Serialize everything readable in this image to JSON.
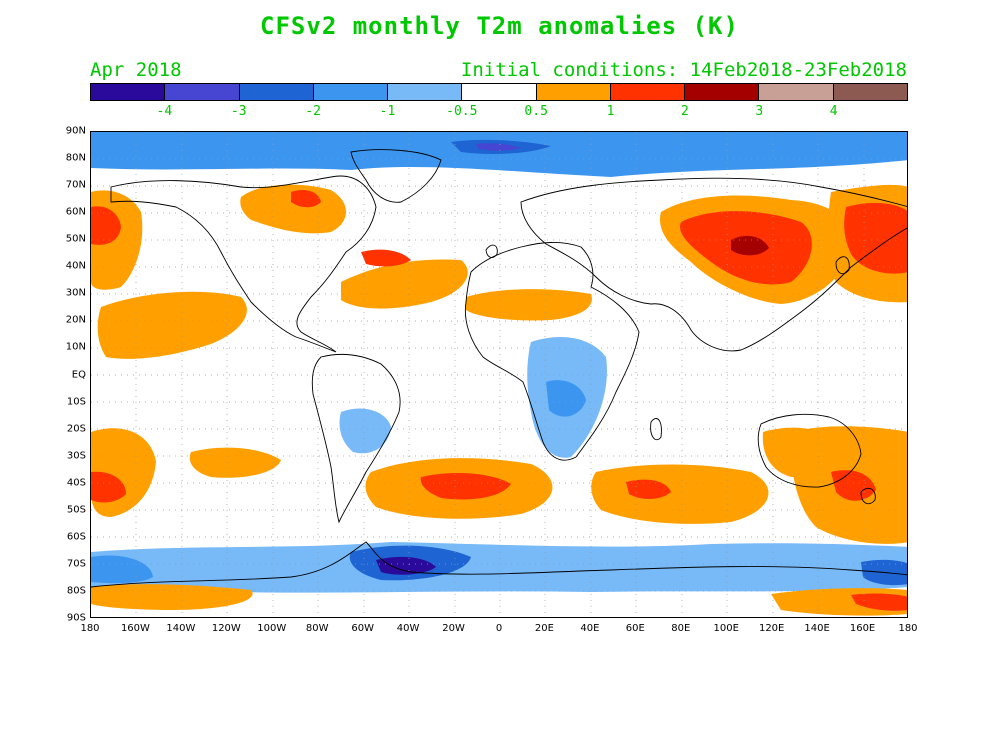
{
  "title": "CFSv2 monthly T2m anomalies (K)",
  "valid_month": "Apr 2018",
  "initial_conditions": "Initial conditions: 14Feb2018-23Feb2018",
  "legend": {
    "colors": [
      "#2a0a9a",
      "#4646d2",
      "#1e64d2",
      "#3c96f0",
      "#78b9f8",
      "#ffffff",
      "#ffa000",
      "#ff3200",
      "#a50000",
      "#c8a096",
      "#8c5a50"
    ],
    "tick_labels": [
      "-4",
      "-3",
      "-2",
      "-1",
      "-0.5",
      "0.5",
      "1",
      "2",
      "3",
      "4"
    ]
  },
  "lat_labels": [
    "90N",
    "80N",
    "70N",
    "60N",
    "50N",
    "40N",
    "30N",
    "20N",
    "10N",
    "EQ",
    "10S",
    "20S",
    "30S",
    "40S",
    "50S",
    "60S",
    "70S",
    "80S",
    "90S"
  ],
  "lon_labels": [
    "180",
    "160W",
    "140W",
    "120W",
    "100W",
    "80W",
    "60W",
    "40W",
    "20W",
    "0",
    "20E",
    "40E",
    "60E",
    "80E",
    "100E",
    "120E",
    "140E",
    "160E",
    "180"
  ]
}
